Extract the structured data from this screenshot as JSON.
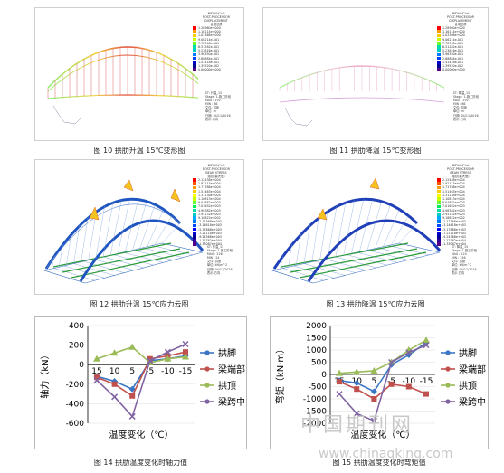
{
  "fig10": {
    "caption": "图 10  拱肋升温 15℃变形图",
    "header": [
      "MIDAS/Civil",
      "POST-PROCESSOR",
      "DISPLACEMENT",
      "合成位移"
    ],
    "scale": [
      "1.28960e+000",
      "1.16114e+000",
      "1.03368e+000",
      "9.06214e-001",
      "7.78748e-001",
      "6.51282e-001",
      "5.23816e-001",
      "3.96350e-001",
      "2.68884e-001",
      "1.41418e-001",
      "1.39520e-002",
      "0.00000e+000"
    ],
    "info": [
      "ST: 升温_15",
      "Stage: 1-施工阶段",
      "MAX : 192",
      "MIN : 86",
      "文件: 拱肋",
      "单位: m",
      "日期: 04/11/2016",
      "表示-方向"
    ]
  },
  "fig11": {
    "caption": "图 11  拱肋降温 15℃变形图",
    "header": [
      "MIDAS/Civil",
      "POST-PROCESSOR",
      "DISPLACEMENT",
      "合成位移"
    ],
    "scale": [
      "1.28960e+000",
      "1.16114e+000",
      "1.03368e+000",
      "9.06214e-001",
      "7.78748e-001",
      "6.51282e-001",
      "5.23816e-001",
      "3.96350e-001",
      "2.68884e-001",
      "1.41418e-001",
      "1.39520e-002",
      "0.00000e+000"
    ],
    "info": [
      "ST: 降温_15",
      "Stage: 1-施工阶段",
      "MAX : 192",
      "MIN : 86",
      "文件: 拱肋",
      "单位: m",
      "日期: 04/11/2016",
      "表示-方向"
    ]
  },
  "fig12": {
    "caption": "图 12  拱肋升温 15℃应力云图",
    "header": [
      "MIDAS/Civil",
      "POST-PROCESSOR",
      "BEAM STRESS",
      "组合(最大值)"
    ],
    "scale": [
      "2.12438e+004",
      "1.92113e+004",
      "1.71788e+004",
      "1.51463e+004",
      "1.31138e+004",
      "1.10813e+004",
      "9.04882e+003",
      "7.01632e+003",
      "4.98382e+003",
      "2.95132e+003",
      "9.18822e+002",
      "-1.11368e+003",
      "-3.14618e+003",
      "-5.17868e+003",
      "-7.21118e+003",
      "-9.24368e+003",
      "-1.12762e+004",
      "-1.33087e+004"
    ],
    "info": [
      "ST: 升温_15",
      "Stage: 1-施工阶段",
      "MAX : 226",
      "MIN : 24",
      "文件: 拱肋",
      "单位: kN/m^2",
      "日期: 04/11/2016",
      "表示-方向"
    ]
  },
  "fig13": {
    "caption": "图 13  拱肋降温 15℃应力云图",
    "header": [
      "MIDAS/Civil",
      "POST-PROCESSOR",
      "BEAM STRESS",
      "组合(最大值)"
    ],
    "scale": [
      "2.12438e+004",
      "1.92113e+004",
      "1.71788e+004",
      "1.51463e+004",
      "1.31138e+004",
      "1.10813e+004",
      "9.04882e+003",
      "7.01632e+003",
      "4.98382e+003",
      "2.95132e+003",
      "9.18822e+002",
      "-1.11368e+003",
      "-3.14618e+003",
      "-5.17868e+003",
      "-7.21118e+003",
      "-9.24368e+003",
      "-1.12762e+004",
      "-1.33087e+004"
    ],
    "info": [
      "ST: 降温_15",
      "Stage: 1-施工阶段",
      "MAX : 224",
      "MIN : 246",
      "文件: 拱肋",
      "单位: kN/m^2",
      "日期: 04/11/2016",
      "表示-方向"
    ]
  },
  "fig14": {
    "caption": "图 14  拱肋温度变化时轴力值"
  },
  "fig15": {
    "caption": "图 15  拱肋温度变化时弯矩值"
  },
  "watermark": {
    "cn": "中国期刊网",
    "url": "www.chinaqking.com"
  },
  "colors": {
    "axis": "#000000",
    "grid": "#dddddd",
    "s1": "#3a76c4",
    "s2": "#c0504d",
    "s3": "#9bbb59",
    "s4": "#8064a2"
  },
  "chart_data": [
    {
      "type": "line",
      "ylabel": "轴力（kN）",
      "xlabel": "温度变化（℃）",
      "categories": [
        "15",
        "10",
        "5",
        "-5",
        "-10",
        "-15"
      ],
      "ylim": [
        -600,
        400
      ],
      "yticks": [
        400,
        200,
        0,
        -200,
        -400,
        -600
      ],
      "legend_position": "right",
      "series": [
        {
          "name": "拱脚",
          "values": [
            -120,
            -170,
            -250,
            40,
            60,
            90
          ]
        },
        {
          "name": "梁端部",
          "values": [
            -130,
            -200,
            -320,
            60,
            90,
            130
          ]
        },
        {
          "name": "拱顶",
          "values": [
            60,
            120,
            180,
            20,
            60,
            80
          ]
        },
        {
          "name": "梁跨中",
          "values": [
            -160,
            -330,
            -530,
            40,
            130,
            210
          ]
        }
      ]
    },
    {
      "type": "line",
      "ylabel": "弯矩（kN·m）",
      "xlabel": "温度变化（℃）",
      "categories": [
        "15",
        "10",
        "5",
        "-5",
        "-10",
        "-15"
      ],
      "ylim": [
        -2000,
        2000
      ],
      "yticks": [
        2000,
        1500,
        1000,
        500,
        0,
        -500,
        -1000,
        -1500,
        -2000
      ],
      "legend_position": "right",
      "series": [
        {
          "name": "拱脚",
          "values": [
            -250,
            -350,
            -700,
            400,
            800,
            1300
          ]
        },
        {
          "name": "梁端部",
          "values": [
            -300,
            -600,
            -1000,
            -400,
            -500,
            -800
          ]
        },
        {
          "name": "拱顶",
          "values": [
            50,
            100,
            150,
            500,
            1000,
            1400
          ]
        },
        {
          "name": "梁跨中",
          "values": [
            -800,
            -1600,
            -1900,
            500,
            900,
            1200
          ]
        }
      ]
    }
  ]
}
